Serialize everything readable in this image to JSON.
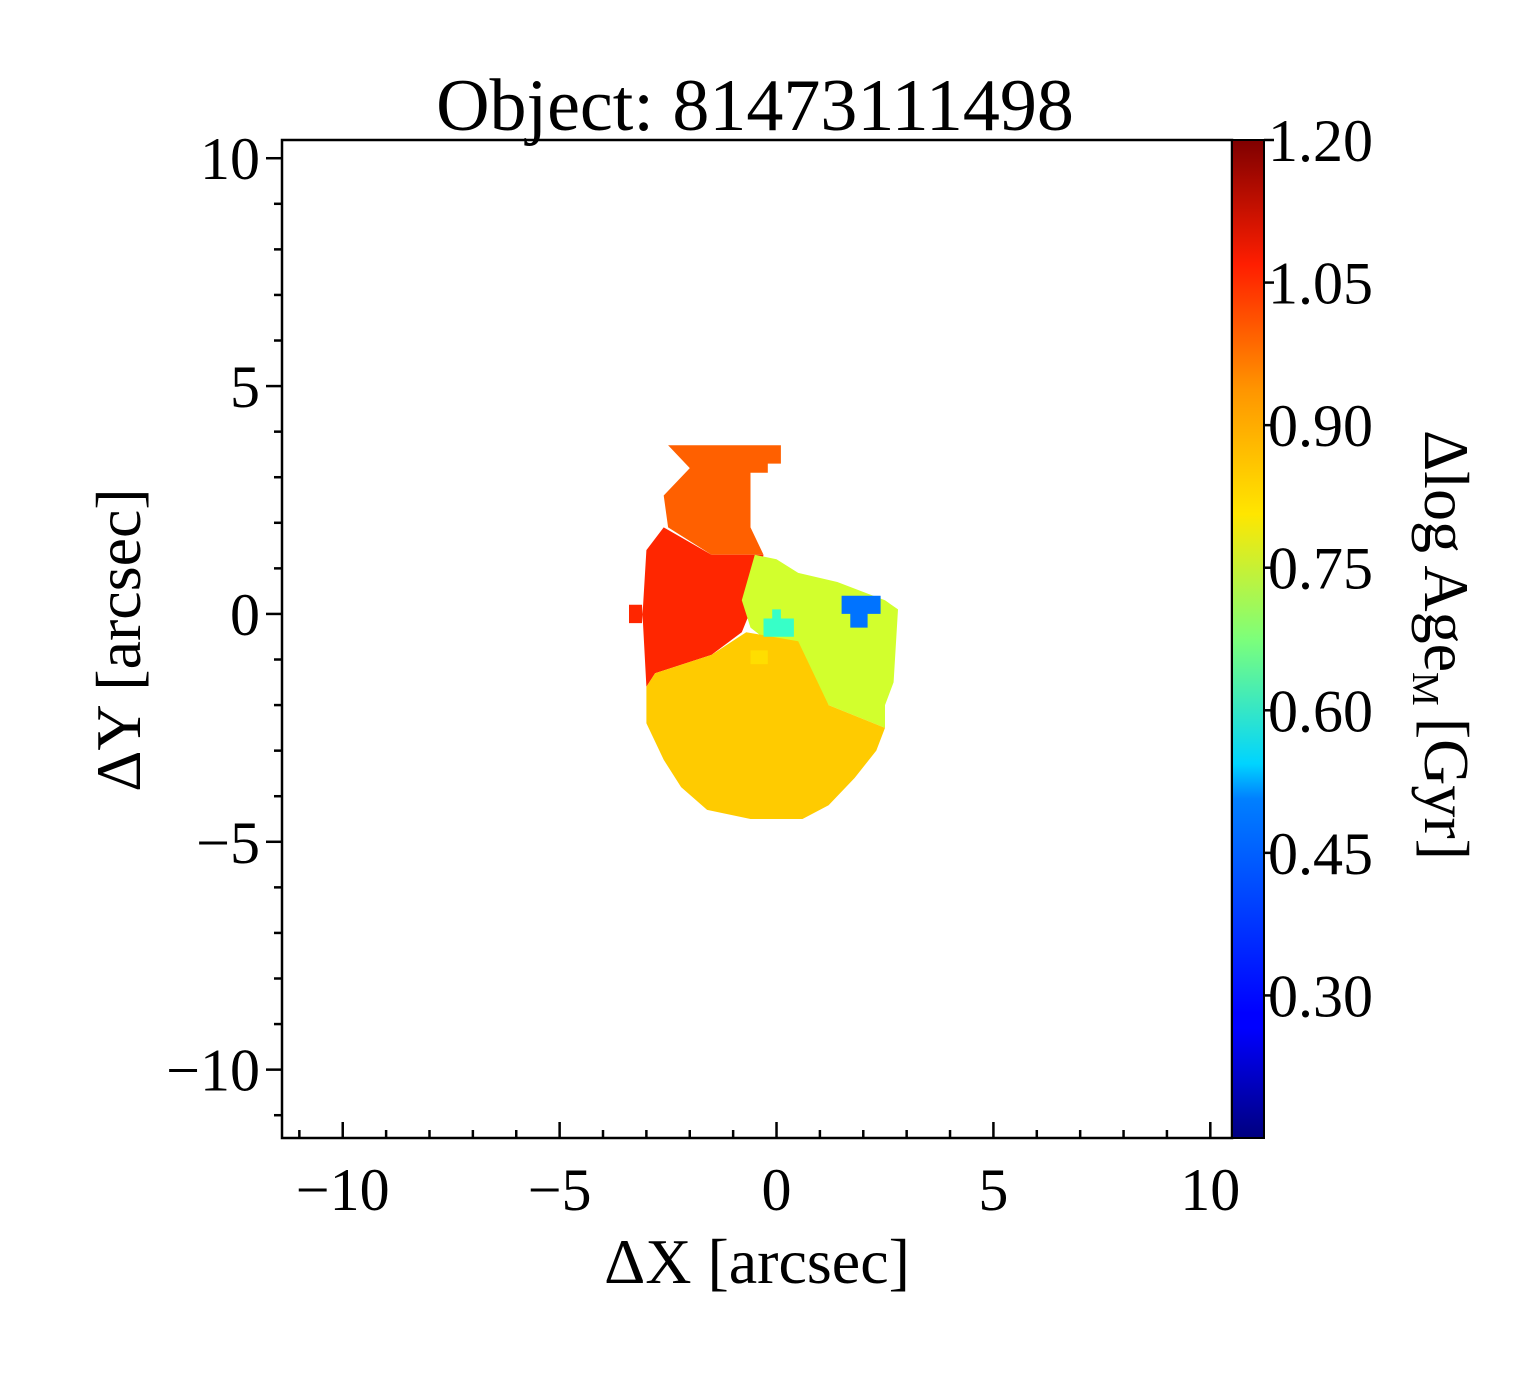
{
  "chart_data": {
    "type": "heatmap",
    "title": "Object: 81473111498",
    "xlabel": "ΔX [arcsec]",
    "ylabel": "ΔY [arcsec]",
    "colorbar_label": "Δlog Age",
    "colorbar_label_sub": "M",
    "colorbar_label_unit": "[Gyr]",
    "colormap": "jet",
    "xlim": [
      -11.4,
      10.5
    ],
    "ylim": [
      -11.5,
      10.4
    ],
    "x_ticks": [
      -10,
      -5,
      0,
      5,
      10
    ],
    "x_tick_labels": [
      "−10",
      "−5",
      "0",
      "5",
      "10"
    ],
    "y_ticks": [
      -10,
      -5,
      0,
      5,
      10
    ],
    "y_tick_labels": [
      "−10",
      "−5",
      "0",
      "5",
      "10"
    ],
    "colorbar_range": [
      0.15,
      1.2
    ],
    "colorbar_ticks": [
      1.2,
      1.05,
      0.9,
      0.75,
      0.6,
      0.45,
      0.3
    ],
    "colorbar_tick_labels": [
      "1.20",
      "1.05",
      "0.90",
      "0.75",
      "0.60",
      "0.45",
      "0.30"
    ],
    "regions": [
      {
        "name": "upper-orange",
        "value": 0.97,
        "polygon": [
          [
            -2.5,
            3.7
          ],
          [
            0.1,
            3.7
          ],
          [
            0.1,
            3.3
          ],
          [
            -0.2,
            3.3
          ],
          [
            -0.2,
            3.1
          ],
          [
            -0.6,
            3.1
          ],
          [
            -0.6,
            2.6
          ],
          [
            -0.6,
            1.9
          ],
          [
            -0.3,
            1.3
          ],
          [
            -1.5,
            1.3
          ],
          [
            -2.5,
            1.9
          ],
          [
            -2.6,
            2.6
          ],
          [
            -2.0,
            3.2
          ],
          [
            -2.5,
            3.7
          ]
        ]
      },
      {
        "name": "left-red-orange",
        "value": 1.03,
        "polygon": [
          [
            -2.6,
            1.9
          ],
          [
            -1.5,
            1.3
          ],
          [
            -0.3,
            1.3
          ],
          [
            -0.5,
            0.3
          ],
          [
            -0.8,
            -0.4
          ],
          [
            -1.5,
            -0.9
          ],
          [
            -2.8,
            -1.3
          ],
          [
            -3.0,
            -1.6
          ],
          [
            -3.1,
            0.2
          ],
          [
            -3.4,
            0.2
          ],
          [
            -3.4,
            -0.2
          ],
          [
            -3.1,
            -0.2
          ],
          [
            -3.0,
            1.4
          ],
          [
            -2.6,
            1.9
          ]
        ]
      },
      {
        "name": "right-green",
        "value": 0.76,
        "polygon": [
          [
            -0.5,
            1.3
          ],
          [
            0.0,
            1.2
          ],
          [
            0.5,
            0.9
          ],
          [
            1.4,
            0.7
          ],
          [
            2.5,
            0.3
          ],
          [
            2.8,
            0.1
          ],
          [
            2.7,
            -1.5
          ],
          [
            2.5,
            -2.0
          ],
          [
            2.5,
            -2.5
          ],
          [
            1.2,
            -2.0
          ],
          [
            0.6,
            -1.2
          ],
          [
            -0.6,
            -0.3
          ],
          [
            -0.8,
            0.3
          ],
          [
            -0.5,
            1.3
          ]
        ]
      },
      {
        "name": "lower-yellow",
        "value": 0.86,
        "polygon": [
          [
            -3.0,
            -1.6
          ],
          [
            -2.8,
            -1.3
          ],
          [
            -1.5,
            -0.9
          ],
          [
            -0.7,
            -0.4
          ],
          [
            0.5,
            -0.6
          ],
          [
            1.2,
            -2.0
          ],
          [
            2.5,
            -2.5
          ],
          [
            2.3,
            -3.0
          ],
          [
            1.8,
            -3.6
          ],
          [
            1.2,
            -4.2
          ],
          [
            0.6,
            -4.5
          ],
          [
            -0.6,
            -4.5
          ],
          [
            -1.6,
            -4.3
          ],
          [
            -2.2,
            -3.8
          ],
          [
            -2.6,
            -3.2
          ],
          [
            -3.0,
            -2.4
          ],
          [
            -3.0,
            -1.6
          ]
        ]
      },
      {
        "name": "center-cyan",
        "value": 0.6,
        "polygon": [
          [
            -0.3,
            -0.1
          ],
          [
            -0.1,
            -0.1
          ],
          [
            -0.1,
            0.1
          ],
          [
            0.1,
            0.1
          ],
          [
            0.1,
            -0.1
          ],
          [
            0.4,
            -0.1
          ],
          [
            0.4,
            -0.5
          ],
          [
            -0.3,
            -0.5
          ],
          [
            -0.3,
            -0.1
          ]
        ]
      },
      {
        "name": "center-yellow-pixel",
        "value": 0.84,
        "polygon": [
          [
            -0.6,
            -0.8
          ],
          [
            -0.2,
            -0.8
          ],
          [
            -0.2,
            -1.1
          ],
          [
            -0.6,
            -1.1
          ],
          [
            -0.6,
            -0.8
          ]
        ]
      },
      {
        "name": "blue-patch",
        "value": 0.4,
        "polygon": [
          [
            1.5,
            0.4
          ],
          [
            2.4,
            0.4
          ],
          [
            2.4,
            0.0
          ],
          [
            2.1,
            0.0
          ],
          [
            2.1,
            -0.3
          ],
          [
            1.7,
            -0.3
          ],
          [
            1.7,
            0.0
          ],
          [
            1.5,
            0.0
          ],
          [
            1.5,
            0.4
          ]
        ]
      }
    ]
  }
}
